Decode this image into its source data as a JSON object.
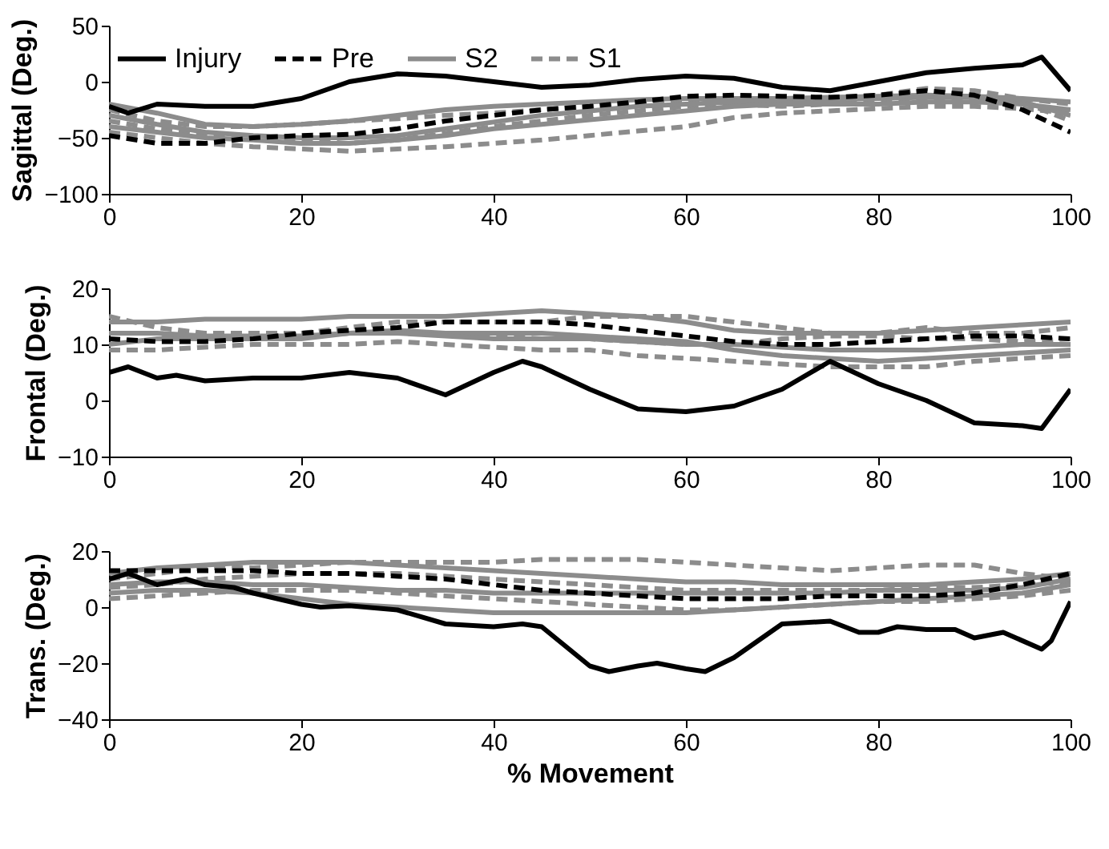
{
  "chart_data": [
    {
      "type": "line",
      "ylabel": "Sagittal  (Deg.)",
      "xlim": [
        0,
        100
      ],
      "xticks": [
        0,
        20,
        40,
        60,
        80,
        100
      ],
      "ylim": [
        -100,
        50
      ],
      "yticks": [
        -100,
        -50,
        0,
        50
      ],
      "legend": "top left",
      "x": [
        0,
        5,
        10,
        15,
        20,
        25,
        30,
        35,
        40,
        45,
        50,
        55,
        60,
        65,
        70,
        75,
        80,
        85,
        90,
        95,
        100
      ],
      "series": [
        {
          "name": "Injury",
          "color": "#000000",
          "line_style": "solid",
          "x": [
            0,
            2,
            5,
            10,
            15,
            20,
            25,
            30,
            35,
            40,
            45,
            50,
            55,
            60,
            65,
            70,
            75,
            80,
            85,
            90,
            95,
            97,
            100
          ],
          "values": [
            -22,
            -28,
            -20,
            -22,
            -22,
            -15,
            0,
            7,
            5,
            0,
            -5,
            -3,
            2,
            5,
            3,
            -5,
            -8,
            0,
            8,
            12,
            15,
            22,
            -8
          ]
        },
        {
          "name": "Pre",
          "color": "#000000",
          "line_style": "dashed",
          "values": [
            -48,
            -55,
            -55,
            -50,
            -48,
            -47,
            -42,
            -35,
            -30,
            -25,
            -22,
            -18,
            -13,
            -12,
            -13,
            -14,
            -12,
            -8,
            -12,
            -25,
            -45
          ]
        },
        {
          "name": "S2",
          "color": "#8c8c8c",
          "line_style": "solid",
          "values": [
            -20,
            -28,
            -38,
            -40,
            -38,
            -35,
            -30,
            -25,
            -22,
            -20,
            -18,
            -16,
            -15,
            -15,
            -15,
            -14,
            -13,
            -12,
            -13,
            -15,
            -18
          ]
        },
        {
          "color": "#8c8c8c",
          "line_style": "solid",
          "values": [
            -40,
            -45,
            -50,
            -52,
            -55,
            -55,
            -52,
            -48,
            -42,
            -38,
            -34,
            -30,
            -26,
            -22,
            -20,
            -20,
            -20,
            -18,
            -18,
            -20,
            -25
          ]
        },
        {
          "color": "#8c8c8c",
          "line_style": "solid",
          "values": [
            -30,
            -38,
            -45,
            -48,
            -50,
            -50,
            -48,
            -42,
            -36,
            -30,
            -26,
            -22,
            -20,
            -18,
            -17,
            -16,
            -15,
            -14,
            -14,
            -18,
            -30
          ]
        },
        {
          "name": "S1",
          "color": "#8c8c8c",
          "line_style": "dashed",
          "values": [
            -25,
            -35,
            -40,
            -40,
            -38,
            -35,
            -33,
            -30,
            -28,
            -25,
            -22,
            -20,
            -18,
            -18,
            -18,
            -16,
            -12,
            -6,
            -8,
            -15,
            -20
          ]
        },
        {
          "color": "#8c8c8c",
          "line_style": "dashed",
          "values": [
            -45,
            -50,
            -55,
            -58,
            -60,
            -62,
            -60,
            -58,
            -55,
            -52,
            -48,
            -44,
            -40,
            -32,
            -28,
            -26,
            -24,
            -22,
            -22,
            -24,
            -28
          ]
        },
        {
          "color": "#8c8c8c",
          "line_style": "dashed",
          "values": [
            -35,
            -42,
            -48,
            -50,
            -52,
            -55,
            -52,
            -46,
            -40,
            -35,
            -30,
            -26,
            -22,
            -20,
            -22,
            -20,
            -18,
            -16,
            -15,
            -18,
            -35
          ]
        }
      ]
    },
    {
      "type": "line",
      "ylabel": "Frontal (Deg.)",
      "xlim": [
        0,
        100
      ],
      "xticks": [
        0,
        20,
        40,
        60,
        80,
        100
      ],
      "ylim": [
        -10,
        20
      ],
      "yticks": [
        -10,
        0,
        10,
        20
      ],
      "x": [
        0,
        5,
        10,
        15,
        20,
        25,
        30,
        35,
        40,
        45,
        50,
        55,
        60,
        65,
        70,
        75,
        80,
        85,
        90,
        95,
        100
      ],
      "series": [
        {
          "color": "#000000",
          "line_style": "solid",
          "x": [
            0,
            2,
            5,
            7,
            10,
            15,
            20,
            25,
            30,
            35,
            40,
            43,
            45,
            50,
            55,
            60,
            65,
            70,
            75,
            80,
            85,
            90,
            95,
            97,
            100
          ],
          "values": [
            5,
            6,
            4,
            4.5,
            3.5,
            4,
            4,
            5,
            4,
            1,
            5,
            7,
            6,
            2,
            -1.5,
            -2,
            -1,
            2,
            7,
            3,
            0,
            -4,
            -4.5,
            -5,
            2
          ]
        },
        {
          "color": "#000000",
          "line_style": "dashed",
          "values": [
            11,
            10.5,
            10.5,
            11,
            12,
            12.5,
            13,
            14,
            14,
            14,
            13.5,
            12.5,
            11.5,
            10.5,
            10,
            10,
            10.5,
            11,
            11.5,
            11.5,
            11
          ]
        },
        {
          "color": "#8c8c8c",
          "line_style": "solid",
          "values": [
            14,
            14,
            14.5,
            14.5,
            14.5,
            15,
            15,
            15,
            15.5,
            16,
            15.5,
            15,
            14,
            12.5,
            12,
            12,
            12,
            12.5,
            13,
            13.5,
            14
          ]
        },
        {
          "color": "#8c8c8c",
          "line_style": "solid",
          "values": [
            12,
            12,
            11.5,
            11.5,
            11.5,
            12,
            12,
            11.5,
            11,
            11,
            11,
            10.5,
            10,
            10,
            9.5,
            9,
            9,
            9,
            9.5,
            10,
            10
          ]
        },
        {
          "color": "#8c8c8c",
          "line_style": "solid",
          "values": [
            10,
            11,
            11,
            11,
            11,
            12,
            12.5,
            12,
            12,
            12,
            11.5,
            11,
            10.5,
            9,
            8,
            7.5,
            7,
            7.5,
            8,
            8.5,
            9
          ]
        },
        {
          "color": "#8c8c8c",
          "line_style": "dashed",
          "values": [
            15,
            13,
            12,
            12,
            12,
            13,
            14,
            14,
            14,
            14,
            15,
            15,
            15,
            14,
            13,
            12,
            12,
            13,
            12,
            12,
            13
          ]
        },
        {
          "color": "#8c8c8c",
          "line_style": "dashed",
          "values": [
            9,
            9,
            9.5,
            10,
            10,
            10,
            10.5,
            10,
            9.5,
            9,
            9,
            8,
            7.5,
            7,
            6.5,
            6,
            6,
            6,
            7,
            7.5,
            8
          ]
        },
        {
          "color": "#8c8c8c",
          "line_style": "dashed",
          "values": [
            12,
            12,
            11,
            11,
            11.5,
            12,
            12,
            12,
            11.5,
            11,
            11,
            10.5,
            10,
            10,
            11,
            11.5,
            11.5,
            11,
            11,
            10.5,
            11
          ]
        }
      ]
    },
    {
      "type": "line",
      "xlabel": "% Movement",
      "ylabel": "Trans. (Deg.)",
      "xlim": [
        0,
        100
      ],
      "xticks": [
        0,
        20,
        40,
        60,
        80,
        100
      ],
      "ylim": [
        -40,
        20
      ],
      "yticks": [
        -40,
        -20,
        0,
        20
      ],
      "x": [
        0,
        5,
        10,
        15,
        20,
        25,
        30,
        35,
        40,
        45,
        50,
        55,
        60,
        65,
        70,
        75,
        80,
        85,
        90,
        95,
        100
      ],
      "series": [
        {
          "color": "#000000",
          "line_style": "solid",
          "x": [
            0,
            2,
            5,
            8,
            10,
            13,
            15,
            20,
            22,
            25,
            30,
            35,
            40,
            43,
            45,
            50,
            52,
            55,
            57,
            60,
            62,
            65,
            70,
            75,
            78,
            80,
            82,
            85,
            88,
            90,
            93,
            97,
            98,
            100
          ],
          "values": [
            10,
            12,
            8,
            10,
            8,
            7,
            5,
            1,
            0,
            0.5,
            -1,
            -6,
            -7,
            -6,
            -7,
            -21,
            -23,
            -21,
            -20,
            -22,
            -23,
            -18,
            -6,
            -5,
            -9,
            -9,
            -7,
            -8,
            -8,
            -11,
            -9,
            -15,
            -12,
            2
          ]
        },
        {
          "color": "#000000",
          "line_style": "dashed",
          "values": [
            13,
            13,
            13,
            13,
            12,
            12,
            11,
            10,
            8,
            6,
            5,
            4,
            3,
            3,
            3,
            4,
            4,
            4,
            5,
            8,
            12
          ]
        },
        {
          "color": "#8c8c8c",
          "line_style": "solid",
          "values": [
            12,
            14,
            15,
            16,
            16,
            16,
            15,
            14,
            13,
            12,
            11,
            10,
            9,
            9,
            8,
            8,
            8,
            8,
            9,
            10,
            12
          ]
        },
        {
          "color": "#8c8c8c",
          "line_style": "solid",
          "values": [
            5,
            6,
            6,
            5,
            3,
            1,
            0,
            -1,
            -2,
            -2,
            -2,
            -2,
            -2,
            -1,
            0,
            1,
            2,
            3,
            4,
            5,
            8
          ]
        },
        {
          "color": "#8c8c8c",
          "line_style": "solid",
          "values": [
            8,
            9,
            9,
            8,
            8,
            7,
            6,
            6,
            5,
            5,
            5,
            5,
            5,
            5,
            5,
            5,
            6,
            6,
            6,
            7,
            10
          ]
        },
        {
          "color": "#8c8c8c",
          "line_style": "dashed",
          "values": [
            10,
            12,
            14,
            14,
            15,
            16,
            16,
            16,
            16,
            17,
            17,
            17,
            16,
            15,
            14,
            13,
            14,
            15,
            15,
            12,
            10
          ]
        },
        {
          "color": "#8c8c8c",
          "line_style": "dashed",
          "values": [
            3,
            4,
            5,
            6,
            6,
            6,
            5,
            4,
            3,
            2,
            1,
            0,
            -1,
            -1,
            0,
            1,
            2,
            2,
            3,
            4,
            6
          ]
        },
        {
          "color": "#8c8c8c",
          "line_style": "dashed",
          "values": [
            7,
            8,
            10,
            11,
            12,
            12,
            12,
            11,
            10,
            9,
            8,
            7,
            6,
            6,
            6,
            6,
            6,
            7,
            7,
            8,
            9
          ]
        }
      ]
    }
  ]
}
